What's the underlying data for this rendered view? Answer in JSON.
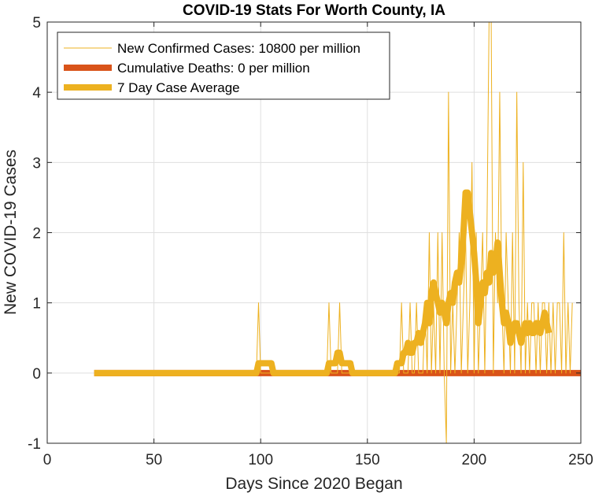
{
  "chart_data": {
    "type": "line",
    "title": "COVID-19 Stats For Worth County, IA",
    "xlabel": "Days Since 2020 Began",
    "ylabel": "New COVID-19 Cases",
    "xlim": [
      0,
      250
    ],
    "ylim": [
      -1,
      5
    ],
    "xticks": [
      0,
      50,
      100,
      150,
      200,
      250
    ],
    "yticks": [
      -1,
      0,
      1,
      2,
      3,
      4,
      5
    ],
    "grid": true,
    "legend_position": "top-left",
    "x_start": 22,
    "series": [
      {
        "name": "New Confirmed Cases: 10800 per million",
        "color": "#EDB120",
        "style": "thin",
        "values": [
          0,
          0,
          0,
          0,
          0,
          0,
          0,
          0,
          0,
          0,
          0,
          0,
          0,
          0,
          0,
          0,
          0,
          0,
          0,
          0,
          0,
          0,
          0,
          0,
          0,
          0,
          0,
          0,
          0,
          0,
          0,
          0,
          0,
          0,
          0,
          0,
          0,
          0,
          0,
          0,
          0,
          0,
          0,
          0,
          0,
          0,
          0,
          0,
          0,
          0,
          0,
          0,
          0,
          0,
          0,
          0,
          0,
          0,
          0,
          0,
          0,
          0,
          0,
          0,
          0,
          0,
          0,
          0,
          0,
          0,
          0,
          0,
          0,
          0,
          0,
          0,
          0,
          1,
          0,
          0,
          0,
          0,
          0,
          0,
          0,
          0,
          0,
          0,
          0,
          0,
          0,
          0,
          0,
          0,
          0,
          0,
          0,
          0,
          0,
          0,
          0,
          0,
          0,
          0,
          0,
          0,
          0,
          0,
          0,
          0,
          1,
          0,
          0,
          0,
          0,
          1,
          0,
          0,
          0,
          0,
          0,
          0,
          0,
          0,
          0,
          0,
          0,
          0,
          0,
          0,
          0,
          0,
          0,
          0,
          0,
          0,
          0,
          0,
          0,
          0,
          0,
          0,
          0,
          0,
          1,
          0,
          0,
          0,
          1,
          0,
          0,
          1,
          0,
          0,
          0,
          1,
          0,
          2,
          0,
          1,
          0,
          2,
          0,
          2,
          0,
          -1,
          4,
          0,
          1,
          0,
          1,
          2,
          0,
          1,
          2,
          0,
          1,
          3,
          0,
          2,
          0,
          1,
          2,
          0,
          2,
          5,
          5,
          0,
          2,
          1,
          4,
          1,
          0,
          2,
          1,
          0,
          2,
          0,
          4,
          1,
          0,
          3,
          0,
          1,
          0,
          1,
          1,
          0,
          1,
          0,
          1,
          1,
          0,
          1,
          0,
          1,
          0,
          1,
          1,
          0,
          2,
          0,
          1,
          0,
          1
        ]
      },
      {
        "name": "Cumulative Deaths: 0 per million",
        "color": "#D95319",
        "style": "thick",
        "values": [
          0,
          0,
          0,
          0,
          0,
          0,
          0,
          0,
          0,
          0,
          0,
          0,
          0,
          0,
          0,
          0,
          0,
          0,
          0,
          0,
          0,
          0,
          0,
          0,
          0,
          0,
          0,
          0,
          0,
          0,
          0,
          0,
          0,
          0,
          0,
          0,
          0,
          0,
          0,
          0,
          0,
          0,
          0,
          0,
          0,
          0,
          0,
          0,
          0,
          0,
          0,
          0,
          0,
          0,
          0,
          0,
          0,
          0,
          0,
          0,
          0,
          0,
          0,
          0,
          0,
          0,
          0,
          0,
          0,
          0,
          0,
          0,
          0,
          0,
          0,
          0,
          0,
          0,
          0,
          0,
          0,
          0,
          0,
          0,
          0,
          0,
          0,
          0,
          0,
          0,
          0,
          0,
          0,
          0,
          0,
          0,
          0,
          0,
          0,
          0,
          0,
          0,
          0,
          0,
          0,
          0,
          0,
          0,
          0,
          0,
          0,
          0,
          0,
          0,
          0,
          0,
          0,
          0,
          0,
          0,
          0,
          0,
          0,
          0,
          0,
          0,
          0,
          0,
          0,
          0,
          0,
          0,
          0,
          0,
          0,
          0,
          0,
          0,
          0,
          0,
          0,
          0,
          0,
          0,
          0,
          0,
          0,
          0,
          0,
          0,
          0,
          0,
          0,
          0,
          0,
          0,
          0,
          0,
          0,
          0,
          0,
          0,
          0,
          0,
          0,
          0,
          0,
          0,
          0,
          0,
          0,
          0,
          0,
          0,
          0,
          0,
          0,
          0,
          0,
          0,
          0,
          0,
          0,
          0,
          0,
          0,
          0,
          0,
          0,
          0,
          0,
          0,
          0,
          0,
          0,
          0,
          0,
          0,
          0,
          0,
          0,
          0,
          0,
          0,
          0,
          0,
          0,
          0,
          0,
          0,
          0,
          0,
          0,
          0,
          0,
          0,
          0,
          0,
          0,
          0,
          0,
          0,
          0,
          0,
          0,
          0,
          0,
          0,
          0,
          0,
          0,
          0
        ]
      },
      {
        "name": "7 Day Case Average",
        "color": "#EDB120",
        "style": "thick",
        "values": [
          0,
          0,
          0,
          0,
          0,
          0,
          0,
          0,
          0,
          0,
          0,
          0,
          0,
          0,
          0,
          0,
          0,
          0,
          0,
          0,
          0,
          0,
          0,
          0,
          0,
          0,
          0,
          0,
          0,
          0,
          0,
          0,
          0,
          0,
          0,
          0,
          0,
          0,
          0,
          0,
          0,
          0,
          0,
          0,
          0,
          0,
          0,
          0,
          0,
          0,
          0,
          0,
          0,
          0,
          0,
          0,
          0,
          0,
          0,
          0,
          0,
          0,
          0,
          0,
          0,
          0,
          0,
          0,
          0,
          0,
          0,
          0,
          0,
          0,
          0,
          0,
          0,
          0.14,
          0.14,
          0.14,
          0.14,
          0.14,
          0.14,
          0.14,
          0,
          0,
          0,
          0,
          0,
          0,
          0,
          0,
          0,
          0,
          0,
          0,
          0,
          0,
          0,
          0,
          0,
          0,
          0,
          0,
          0,
          0,
          0,
          0,
          0,
          0,
          0.14,
          0.14,
          0.14,
          0.14,
          0.29,
          0.29,
          0.14,
          0.14,
          0.14,
          0.14,
          0.14,
          0,
          0,
          0,
          0,
          0,
          0,
          0,
          0,
          0,
          0,
          0,
          0,
          0,
          0,
          0,
          0,
          0,
          0,
          0,
          0,
          0,
          0.14,
          0.14,
          0.14,
          0.29,
          0.29,
          0.43,
          0.29,
          0.29,
          0.43,
          0.43,
          0.57,
          0.43,
          0.57,
          0.71,
          1.0,
          0.71,
          1.14,
          1.29,
          1.14,
          1.0,
          0.86,
          1.0,
          0.86,
          0.71,
          1.0,
          1.14,
          1.0,
          1.29,
          1.43,
          1.29,
          1.57,
          2.0,
          2.57,
          2.57,
          2.29,
          2.0,
          1.71,
          1.29,
          0.71,
          1.0,
          1.29,
          1.14,
          1.43,
          1.29,
          1.71,
          1.43,
          1.57,
          1.86,
          1.43,
          1.0,
          0.71,
          0.86,
          0.71,
          0.43,
          0.57,
          0.71,
          0.71,
          0.57,
          0.43,
          0.57,
          0.71,
          0.57,
          0.71,
          0.57,
          0.57,
          0.71,
          0.71,
          0.57,
          0.71,
          0.86,
          0.71,
          0.57
        ]
      }
    ]
  }
}
